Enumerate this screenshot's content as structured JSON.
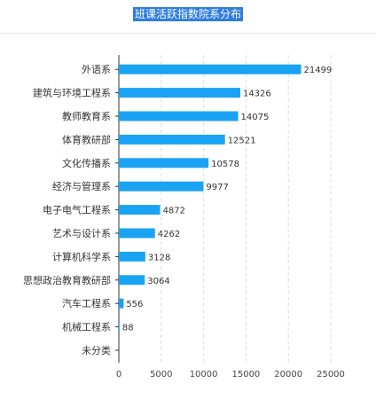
{
  "title": "班课活跃指数院系分布",
  "colors": {
    "bar": "#1aa3f2",
    "grid": "#dcdcdc",
    "axis": "#333333",
    "title_bg": "#2f7de1"
  },
  "chart_data": {
    "type": "bar",
    "orientation": "horizontal",
    "title": "班课活跃指数院系分布",
    "categories": [
      "外语系",
      "建筑与环境工程系",
      "教师教育系",
      "体育教研部",
      "文化传播系",
      "经济与管理系",
      "电子电气工程系",
      "艺术与设计系",
      "计算机科学系",
      "思想政治教育教研部",
      "汽车工程系",
      "机械工程系",
      "未分类"
    ],
    "values": [
      21499,
      14326,
      14075,
      12521,
      10578,
      9977,
      4872,
      4262,
      3128,
      3064,
      556,
      88,
      null
    ],
    "value_labels": [
      "21499",
      "14326",
      "14075",
      "12521",
      "10578",
      "9977",
      "4872",
      "4262",
      "3128",
      "3064",
      "556",
      "88",
      ""
    ],
    "xlim": [
      0,
      25000
    ],
    "xticks": [
      0,
      5000,
      10000,
      15000,
      20000,
      25000
    ],
    "xtick_labels": [
      "0",
      "5000",
      "10000",
      "15000",
      "20000",
      "25000"
    ],
    "grid": "vertical-dashed"
  }
}
